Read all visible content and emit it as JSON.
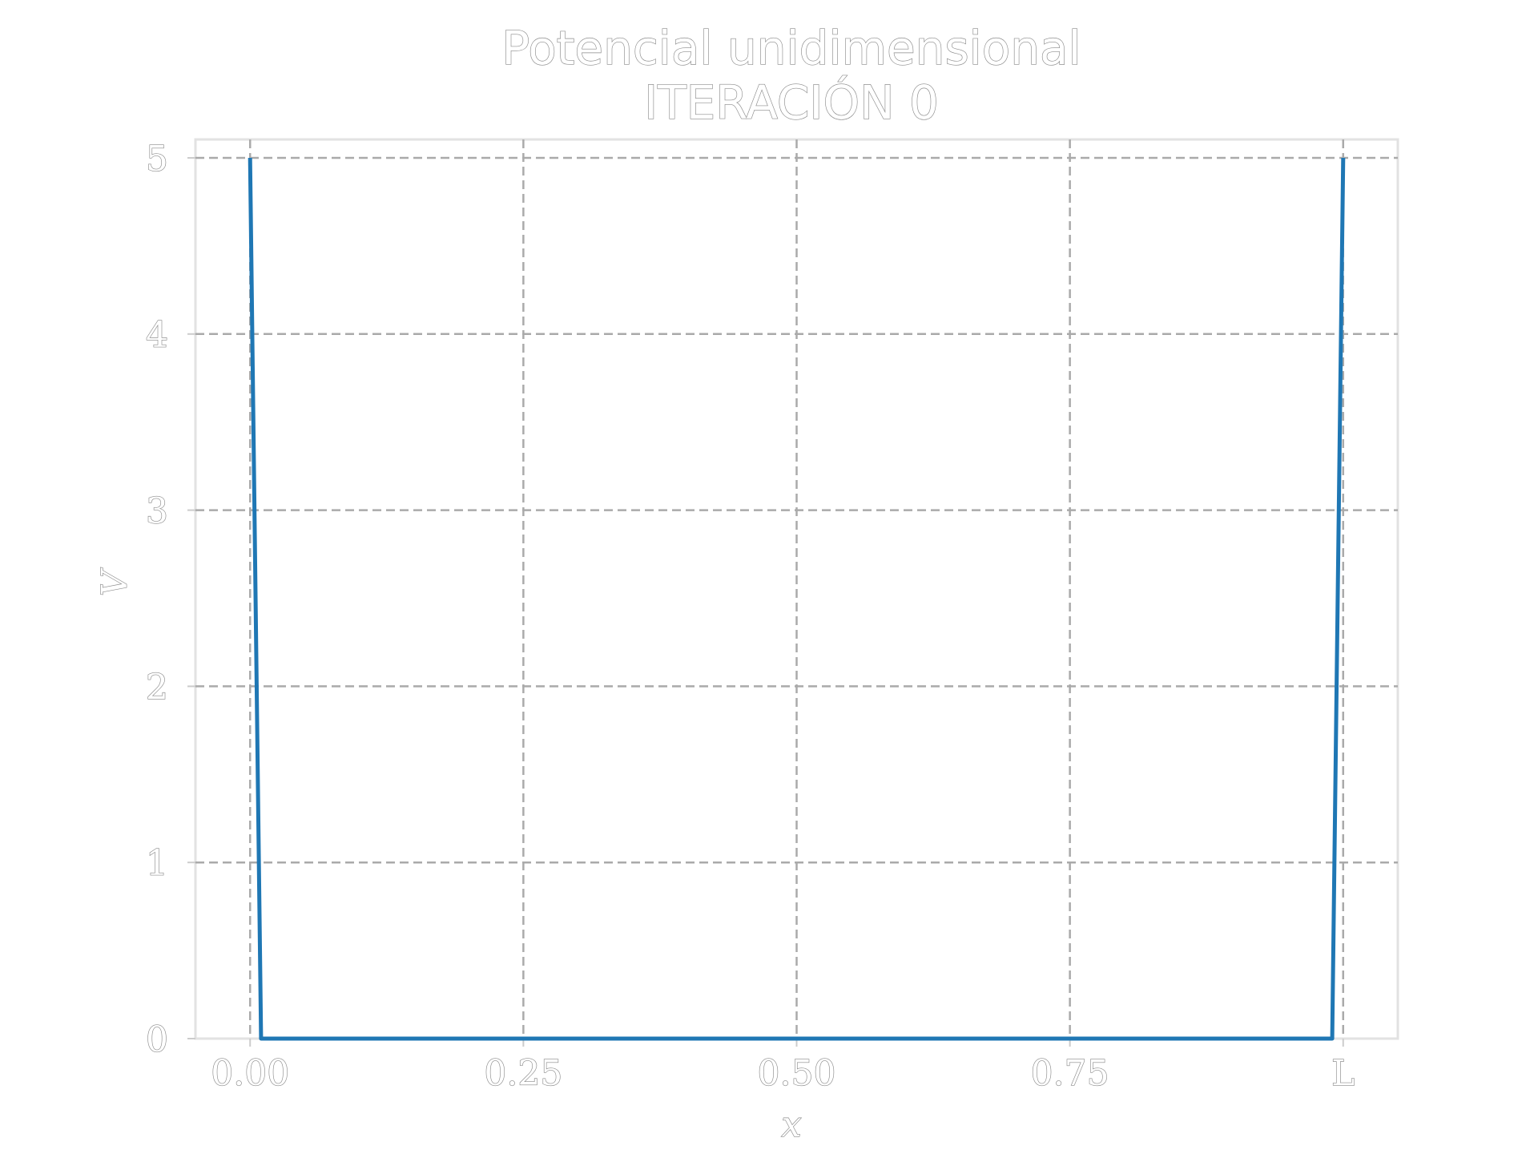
{
  "chart_data": {
    "type": "line",
    "title": "Potencial unidimensional",
    "subtitle": "ITERACIÓN 0",
    "xlabel": "x",
    "ylabel": "V",
    "xlim": [
      -0.05,
      1.05
    ],
    "ylim": [
      0,
      5
    ],
    "x_ticks": [
      {
        "value": 0,
        "label": "0.00"
      },
      {
        "value": 0.25,
        "label": "0.25"
      },
      {
        "value": 0.5,
        "label": "0.50"
      },
      {
        "value": 0.75,
        "label": "0.75"
      },
      {
        "value": 1,
        "label": "L"
      }
    ],
    "y_ticks": [
      {
        "value": 0,
        "label": "0"
      },
      {
        "value": 1,
        "label": "1"
      },
      {
        "value": 2,
        "label": "2"
      },
      {
        "value": 3,
        "label": "3"
      },
      {
        "value": 4,
        "label": "4"
      },
      {
        "value": 5,
        "label": "5"
      }
    ],
    "grid": true,
    "grid_style": "dashed",
    "series": [
      {
        "color": "#1f77b4",
        "x": [
          0,
          0.01,
          0.99,
          1
        ],
        "y": [
          5,
          0,
          0,
          5
        ]
      }
    ]
  }
}
